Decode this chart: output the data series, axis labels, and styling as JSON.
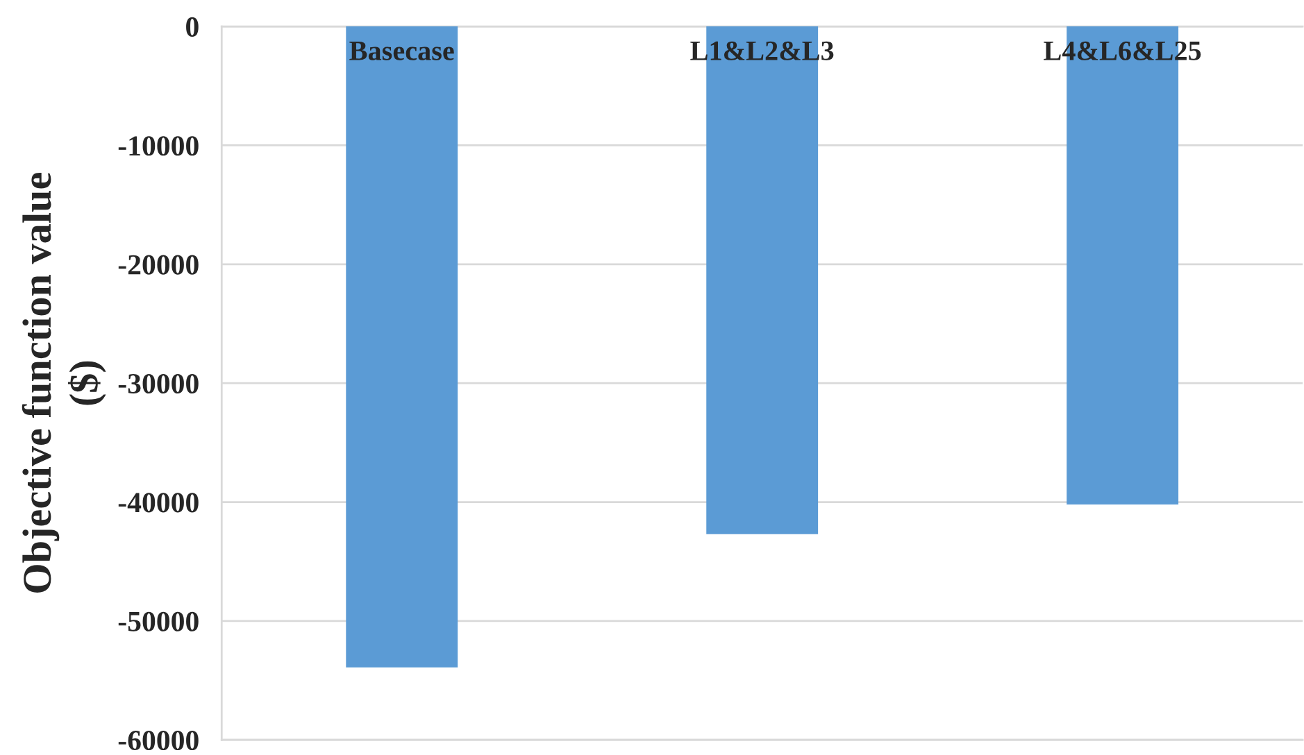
{
  "chart_data": {
    "type": "bar",
    "ylabel": "Objective function value\n($)",
    "categories": [
      "Basecase",
      "L1&L2&L3",
      "L4&L6&L25"
    ],
    "values": [
      -53900,
      -42700,
      -40200
    ],
    "color": "#5b9bd5",
    "ylim": [
      -60000,
      0
    ],
    "yticks": [
      0,
      -10000,
      -20000,
      -30000,
      -40000,
      -50000,
      -60000
    ],
    "grid": "y"
  }
}
